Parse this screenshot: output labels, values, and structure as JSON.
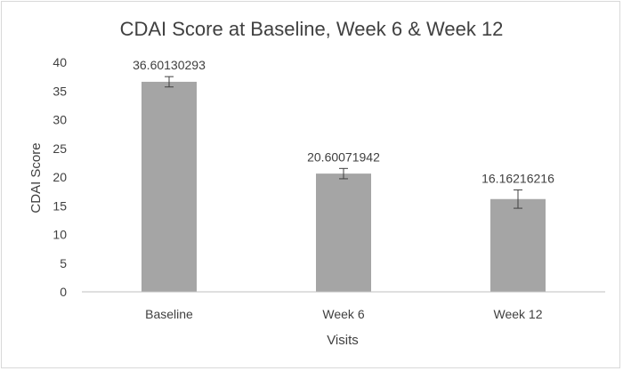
{
  "chart_data": {
    "type": "bar",
    "title": "CDAI Score at Baseline, Week 6 & Week 12",
    "xlabel": "Visits",
    "ylabel": "CDAI Score",
    "categories": [
      "Baseline",
      "Week 6",
      "Week 12"
    ],
    "values": [
      36.60130293,
      20.60071942,
      16.16216216
    ],
    "data_labels": [
      "36.60130293",
      "20.60071942",
      "16.16216216"
    ],
    "error": [
      0.9,
      0.9,
      1.6
    ],
    "ylim": [
      0,
      40
    ],
    "yticks": [
      0,
      5,
      10,
      15,
      20,
      25,
      30,
      35,
      40
    ],
    "grid": false,
    "colors": {
      "bar": "#a5a5a5",
      "axis": "#bfbfbf",
      "errorbar": "#404040"
    }
  }
}
